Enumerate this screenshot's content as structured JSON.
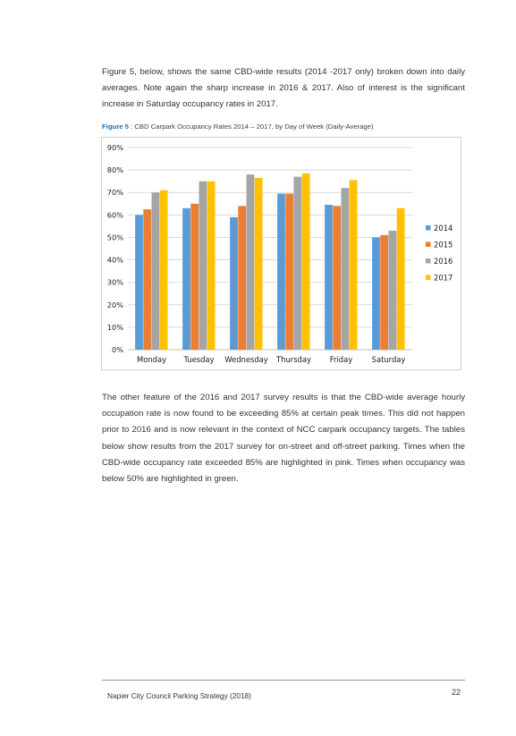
{
  "paragraph_1": "Figure 5, below, shows the same CBD-wide results (2014 -2017 only) broken down into daily averages.  Note again the sharp increase in 2016 & 2017.  Also of interest is the significant increase in Saturday occupancy rates in 2017.",
  "figure_caption": {
    "number": "Figure 5",
    "text": " : CBD Carpark Occupancy Rates 2014 – 2017, by Day of Week (Daily-Average)"
  },
  "paragraph_2": "The other feature of the 2016 and 2017 survey results is that the CBD-wide average hourly occupation rate is now found to be exceeding 85% at certain peak times.  This did not happen prior to 2016 and is now relevant in the context of NCC carpark occupancy targets. The tables below show results from the 2017 survey for on-street and off-street parking. Times when the CBD-wide occupancy rate exceeded 85% are highlighted in pink.  Times when occupancy was below 50% are highlighted in green.",
  "footer": {
    "title": "Napier City Council Parking Strategy (2018)",
    "page_number": "22"
  },
  "chart_data": {
    "type": "bar",
    "categories": [
      "Monday",
      "Tuesday",
      "Wednesday",
      "Thursday",
      "Friday",
      "Saturday"
    ],
    "series": [
      {
        "name": "2014",
        "color": "#5b9bd5",
        "values": [
          60,
          63,
          59,
          69.5,
          64.5,
          50
        ]
      },
      {
        "name": "2015",
        "color": "#ed7d31",
        "values": [
          62.5,
          65,
          64,
          69.5,
          64,
          51
        ]
      },
      {
        "name": "2016",
        "color": "#a5a5a5",
        "values": [
          70,
          75,
          78,
          77,
          72,
          53
        ]
      },
      {
        "name": "2017",
        "color": "#ffc000",
        "values": [
          71,
          75,
          76.5,
          78.5,
          75.5,
          63
        ]
      }
    ],
    "yticks": [
      "0%",
      "10%",
      "20%",
      "30%",
      "40%",
      "50%",
      "60%",
      "70%",
      "80%",
      "90%"
    ],
    "ylim": [
      0,
      90
    ],
    "grid": true,
    "legend_position": "right"
  }
}
